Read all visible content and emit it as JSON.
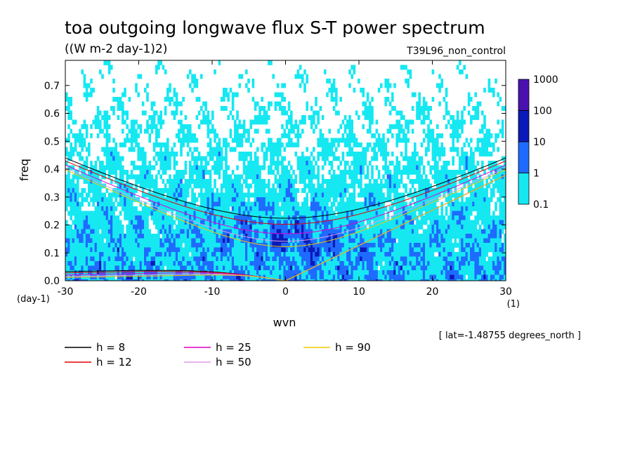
{
  "title": "toa outgoing longwave flux S-T power spectrum",
  "units": "((W m-2 day-1)2)",
  "run_name": "T39L96_non_control",
  "lat_note": "[ lat=-1.48755 degrees_north ]",
  "colorbar": {
    "labels": [
      "1000",
      "100",
      "10",
      "1",
      "0.1"
    ],
    "colors": [
      "#4a10b0",
      "#0a1ab8",
      "#1f6bff",
      "#16e8f2"
    ]
  },
  "chart_data": {
    "type": "heatmap",
    "title": "toa outgoing longwave flux S-T power spectrum",
    "xlabel": "wvn",
    "ylabel": "freq",
    "x_unit_label": "(1)",
    "y_unit_label": "(day-1)",
    "xlim": [
      -30,
      30
    ],
    "ylim": [
      0,
      0.79
    ],
    "x_ticks": [
      -30,
      -20,
      -10,
      0,
      10,
      20,
      30
    ],
    "x_tick_labels": [
      "-30",
      "-20",
      "-10",
      "0",
      "10",
      "20",
      "30"
    ],
    "y_ticks": [
      0.0,
      0.1,
      0.2,
      0.3,
      0.4,
      0.5,
      0.6,
      0.7
    ],
    "y_tick_labels": [
      "0.0",
      "0.1",
      "0.2",
      "0.3",
      "0.4",
      "0.5",
      "0.6",
      "0.7"
    ],
    "contour_levels": [
      0.1,
      1,
      10,
      100,
      1000
    ],
    "dispersion_curves": [
      {
        "label": "h =  8",
        "h": 8,
        "color": "#000000"
      },
      {
        "label": "h = 12",
        "h": 12,
        "color": "#e00000"
      },
      {
        "label": "h = 25",
        "h": 25,
        "color": "#e000c8"
      },
      {
        "label": "h = 50",
        "h": 50,
        "color": "#e09ce6"
      },
      {
        "label": "h = 90",
        "h": 90,
        "color": "#f0c800"
      }
    ]
  }
}
